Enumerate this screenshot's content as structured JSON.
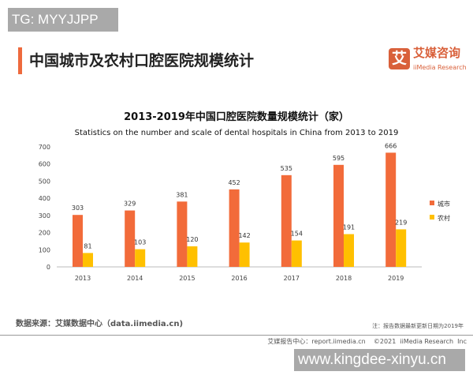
{
  "watermarks": {
    "top": "TG: MYYJJPP",
    "bottom": "www.kingdee-xinyu.cn"
  },
  "header": {
    "title": "中国城市及农村口腔医院规模统计",
    "logo_mark": "艾",
    "logo_cn": "艾媒咨询",
    "logo_en": "iiMedia Research",
    "accent": "#ee6a3d"
  },
  "chart_data": {
    "type": "bar",
    "title": "2013-2019年中国口腔医院数量规模统计（家）",
    "subtitle": "Statistics on the number and scale of dental hospitals in China from 2013 to 2019",
    "categories": [
      "2013",
      "2014",
      "2015",
      "2016",
      "2017",
      "2018",
      "2019"
    ],
    "series": [
      {
        "name": "城市",
        "values": [
          303,
          329,
          381,
          452,
          535,
          595,
          666
        ],
        "color": "#f26b3a"
      },
      {
        "name": "农村",
        "values": [
          81,
          103,
          120,
          142,
          154,
          191,
          219
        ],
        "color": "#ffc000"
      }
    ],
    "ylim": [
      0,
      700
    ],
    "yticks": [
      0,
      100,
      200,
      300,
      400,
      500,
      600,
      700
    ],
    "grid": false,
    "legend": "right",
    "data_labels": true
  },
  "footer": {
    "source": "数据来源：艾媒数据中心（data.iimedia.cn)",
    "note": "注：报告数据最新更新日期为2019年",
    "credit": "艾媒报告中心：report.iimedia.cn    ©2021  iiMedia Research  Inc"
  }
}
